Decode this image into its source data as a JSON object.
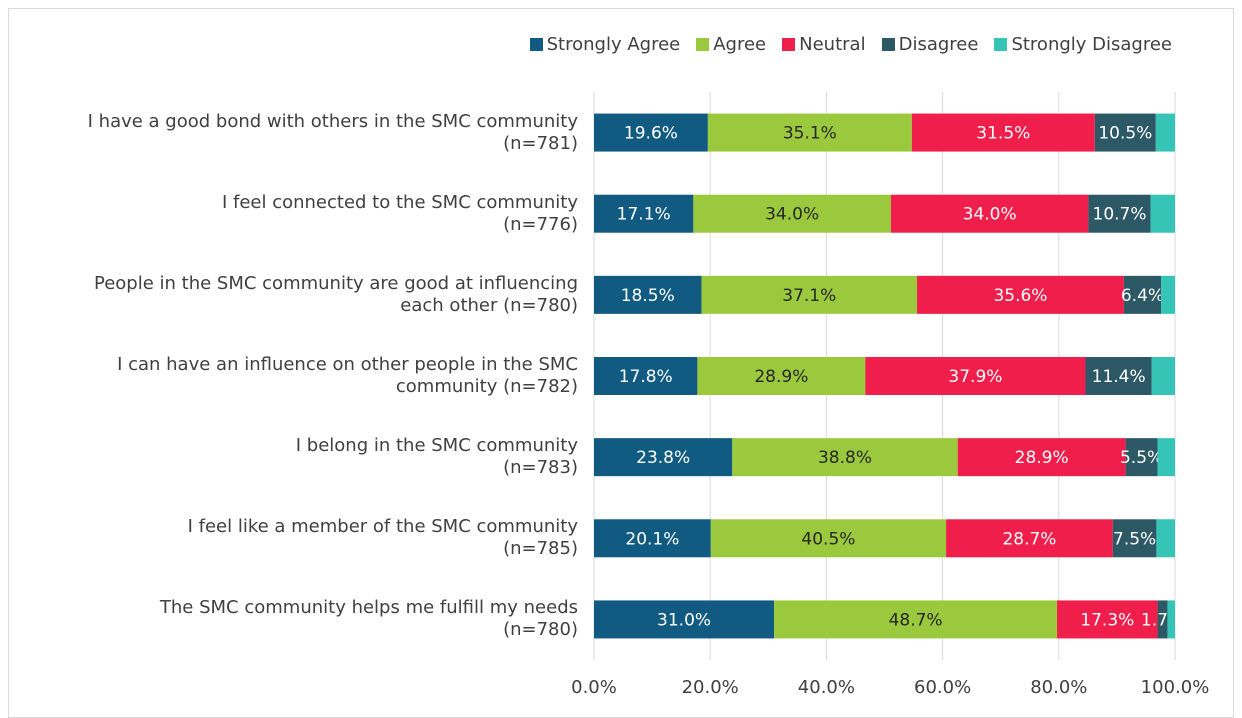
{
  "chart_data": {
    "type": "stacked-barh",
    "categories": [
      "I have a good bond with others in the SMC community\n(n=781)",
      "I feel connected to the SMC community\n(n=776)",
      "People in the SMC community are good at influencing\neach other (n=780)",
      "I can have an influence on other people in the SMC\ncommunity (n=782)",
      "I belong in the SMC community\n(n=783)",
      "I feel like a member of the SMC community\n(n=785)",
      "The SMC community helps me fulfill my needs\n(n=780)"
    ],
    "series": [
      {
        "name": "Strongly Agree",
        "color": "#115a81",
        "values": [
          19.6,
          17.1,
          18.5,
          17.8,
          23.8,
          20.1,
          31.0
        ],
        "value_labels": [
          "19.6%",
          "17.1%",
          "18.5%",
          "17.8%",
          "23.8%",
          "20.1%",
          "31.0%"
        ]
      },
      {
        "name": "Agree",
        "color": "#9bc93d",
        "values": [
          35.1,
          34.0,
          37.1,
          28.9,
          38.8,
          40.5,
          48.7
        ],
        "value_labels": [
          "35.1%",
          "34.0%",
          "37.1%",
          "28.9%",
          "38.8%",
          "40.5%",
          "48.7%"
        ]
      },
      {
        "name": "Neutral",
        "color": "#ef1e4a",
        "values": [
          31.5,
          34.0,
          35.6,
          37.9,
          28.9,
          28.7,
          17.3
        ],
        "value_labels": [
          "31.5%",
          "34.0%",
          "35.6%",
          "37.9%",
          "28.9%",
          "28.7%",
          "17.3%"
        ]
      },
      {
        "name": "Disagree",
        "color": "#2d5966",
        "values": [
          10.5,
          10.7,
          6.4,
          11.4,
          5.5,
          7.5,
          1.7
        ],
        "value_labels": [
          "10.5%",
          "10.7%",
          "6.4%",
          "11.4%",
          "5.5%",
          "7.5%",
          "1.7%"
        ]
      },
      {
        "name": "Strongly Disagree",
        "color": "#35c4b5",
        "values": [
          3.3,
          4.2,
          2.4,
          4.0,
          3.0,
          3.2,
          1.3
        ]
      }
    ],
    "xlim": [
      0,
      100
    ],
    "xticks": [
      {
        "value": 0,
        "label": "0.0%"
      },
      {
        "value": 20,
        "label": "20.0%"
      },
      {
        "value": 40,
        "label": "40.0%"
      },
      {
        "value": 60,
        "label": "60.0%"
      },
      {
        "value": 80,
        "label": "80.0%"
      },
      {
        "value": 100,
        "label": "100.0%"
      }
    ],
    "grid": true
  }
}
